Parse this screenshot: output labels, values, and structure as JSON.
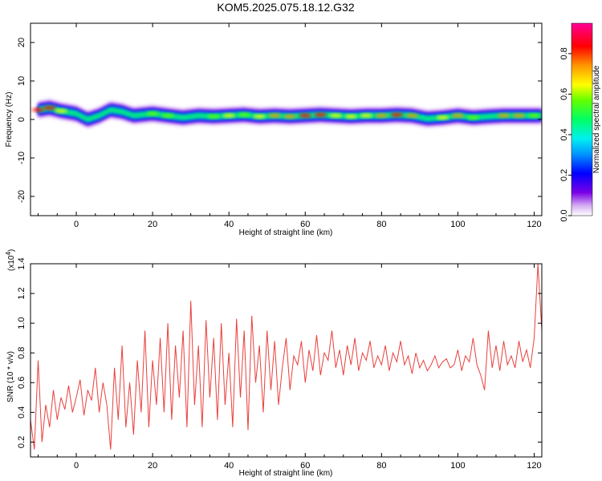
{
  "title": "KOM5.2025.075.18.12.G32",
  "chart_data": [
    {
      "type": "heatmap",
      "xlabel": "Height of straight line (km)",
      "ylabel": "Frequency (Hz)",
      "xlim": [
        -12,
        122
      ],
      "ylim": [
        -25,
        25
      ],
      "x_ticks": [
        0,
        20,
        40,
        60,
        80,
        100,
        120
      ],
      "y_ticks": [
        20,
        10,
        0,
        -10,
        -20
      ],
      "colorbar": {
        "label": "Normalized spectral amplitude",
        "range": [
          0,
          0.95
        ],
        "ticks": [
          "0.0",
          "0.2",
          "0.4",
          "0.6",
          "0.8"
        ],
        "colormap": "rainbow (white-purple-blue-cyan-green-yellow-red-magenta)"
      },
      "ridge": {
        "x": [
          -10,
          -7,
          -4,
          0,
          3,
          6,
          9,
          12,
          15,
          20,
          24,
          28,
          32,
          36,
          40,
          44,
          48,
          52,
          56,
          60,
          64,
          68,
          72,
          76,
          80,
          84,
          88,
          92,
          96,
          100,
          104,
          108,
          112,
          116,
          120,
          122
        ],
        "freq_hz": [
          2.5,
          3.0,
          2.2,
          1.5,
          0.0,
          1.0,
          2.5,
          2.0,
          1.0,
          1.5,
          1.0,
          0.5,
          1.0,
          0.8,
          1.0,
          1.2,
          0.8,
          1.0,
          0.8,
          1.0,
          1.2,
          1.0,
          0.8,
          1.0,
          1.0,
          1.2,
          1.0,
          0.2,
          0.5,
          1.0,
          0.5,
          0.8,
          1.0,
          1.0,
          1.0,
          1.0
        ],
        "amplitude": [
          0.9,
          0.95,
          0.7,
          0.55,
          0.3,
          0.45,
          0.4,
          0.5,
          0.55,
          0.6,
          0.65,
          0.4,
          0.55,
          0.6,
          0.7,
          0.65,
          0.75,
          0.8,
          0.85,
          0.9,
          0.92,
          0.7,
          0.75,
          0.7,
          0.8,
          0.9,
          0.85,
          0.5,
          0.7,
          0.8,
          0.6,
          0.55,
          0.85,
          0.8,
          0.6,
          0.5
        ]
      }
    },
    {
      "type": "line",
      "xlabel": "Height of straight line (km)",
      "ylabel": "SNR (10 * v/v)",
      "y_multiplier_label": "(x10",
      "y_multiplier_exponent": "4",
      "y_multiplier_close": ")",
      "xlim": [
        -12,
        122
      ],
      "ylim": [
        0.1,
        1.4
      ],
      "x_ticks": [
        0,
        20,
        40,
        60,
        80,
        100,
        120
      ],
      "y_ticks": [
        0.2,
        0.4,
        0.6,
        0.8,
        1.0,
        1.2,
        1.4
      ],
      "y_tick_labels": [
        "0.2",
        "0.4",
        "0.6",
        "0.8",
        "1.0",
        "1.2",
        "1.4"
      ],
      "line_color": "#e8403c",
      "series": [
        {
          "x": [
            -12,
            -11,
            -10,
            -9,
            -8,
            -7,
            -6,
            -5,
            -4,
            -3,
            -2,
            -1,
            0,
            1,
            2,
            3,
            4,
            5,
            6,
            7,
            8,
            9,
            10,
            11,
            12,
            13,
            14,
            15,
            16,
            17,
            18,
            19,
            20,
            21,
            22,
            23,
            24,
            25,
            26,
            27,
            28,
            29,
            30,
            31,
            32,
            33,
            34,
            35,
            36,
            37,
            38,
            39,
            40,
            41,
            42,
            43,
            44,
            45,
            46,
            47,
            48,
            49,
            50,
            51,
            52,
            53,
            54,
            55,
            56,
            57,
            58,
            59,
            60,
            61,
            62,
            63,
            64,
            65,
            66,
            67,
            68,
            69,
            70,
            71,
            72,
            73,
            74,
            75,
            76,
            77,
            78,
            79,
            80,
            81,
            82,
            83,
            84,
            85,
            86,
            87,
            88,
            89,
            90,
            91,
            92,
            93,
            94,
            95,
            96,
            97,
            98,
            99,
            100,
            101,
            102,
            103,
            104,
            105,
            106,
            107,
            108,
            109,
            110,
            111,
            112,
            113,
            114,
            115,
            116,
            117,
            118,
            119,
            120,
            121,
            122
          ],
          "values": [
            0.35,
            0.15,
            0.75,
            0.2,
            0.45,
            0.3,
            0.55,
            0.35,
            0.5,
            0.42,
            0.58,
            0.4,
            0.5,
            0.62,
            0.38,
            0.55,
            0.48,
            0.7,
            0.4,
            0.6,
            0.45,
            0.15,
            0.7,
            0.35,
            0.85,
            0.3,
            0.6,
            0.25,
            0.75,
            0.4,
            0.95,
            0.3,
            0.75,
            0.45,
            0.9,
            0.4,
            1.0,
            0.35,
            0.85,
            0.5,
            0.95,
            0.3,
            1.15,
            0.45,
            0.85,
            0.3,
            1.02,
            0.5,
            0.9,
            0.35,
            1.0,
            0.45,
            0.8,
            0.3,
            1.03,
            0.5,
            0.95,
            0.28,
            1.05,
            0.6,
            0.85,
            0.4,
            0.95,
            0.55,
            0.88,
            0.45,
            0.7,
            0.9,
            0.55,
            0.78,
            0.72,
            0.88,
            0.6,
            0.82,
            0.68,
            0.92,
            0.65,
            0.8,
            0.75,
            0.95,
            0.7,
            0.82,
            0.65,
            0.85,
            0.72,
            0.9,
            0.68,
            0.8,
            0.75,
            0.88,
            0.7,
            0.78,
            0.72,
            0.85,
            0.68,
            0.8,
            0.74,
            0.88,
            0.72,
            0.78,
            0.66,
            0.8,
            0.7,
            0.75,
            0.68,
            0.72,
            0.78,
            0.7,
            0.74,
            0.76,
            0.7,
            0.72,
            0.82,
            0.68,
            0.78,
            0.74,
            0.9,
            0.72,
            0.65,
            0.55,
            0.95,
            0.7,
            0.85,
            0.68,
            0.88,
            0.72,
            0.78,
            0.7,
            0.88,
            0.74,
            0.82,
            0.7,
            0.9,
            1.4,
            0.95
          ]
        }
      ]
    }
  ]
}
